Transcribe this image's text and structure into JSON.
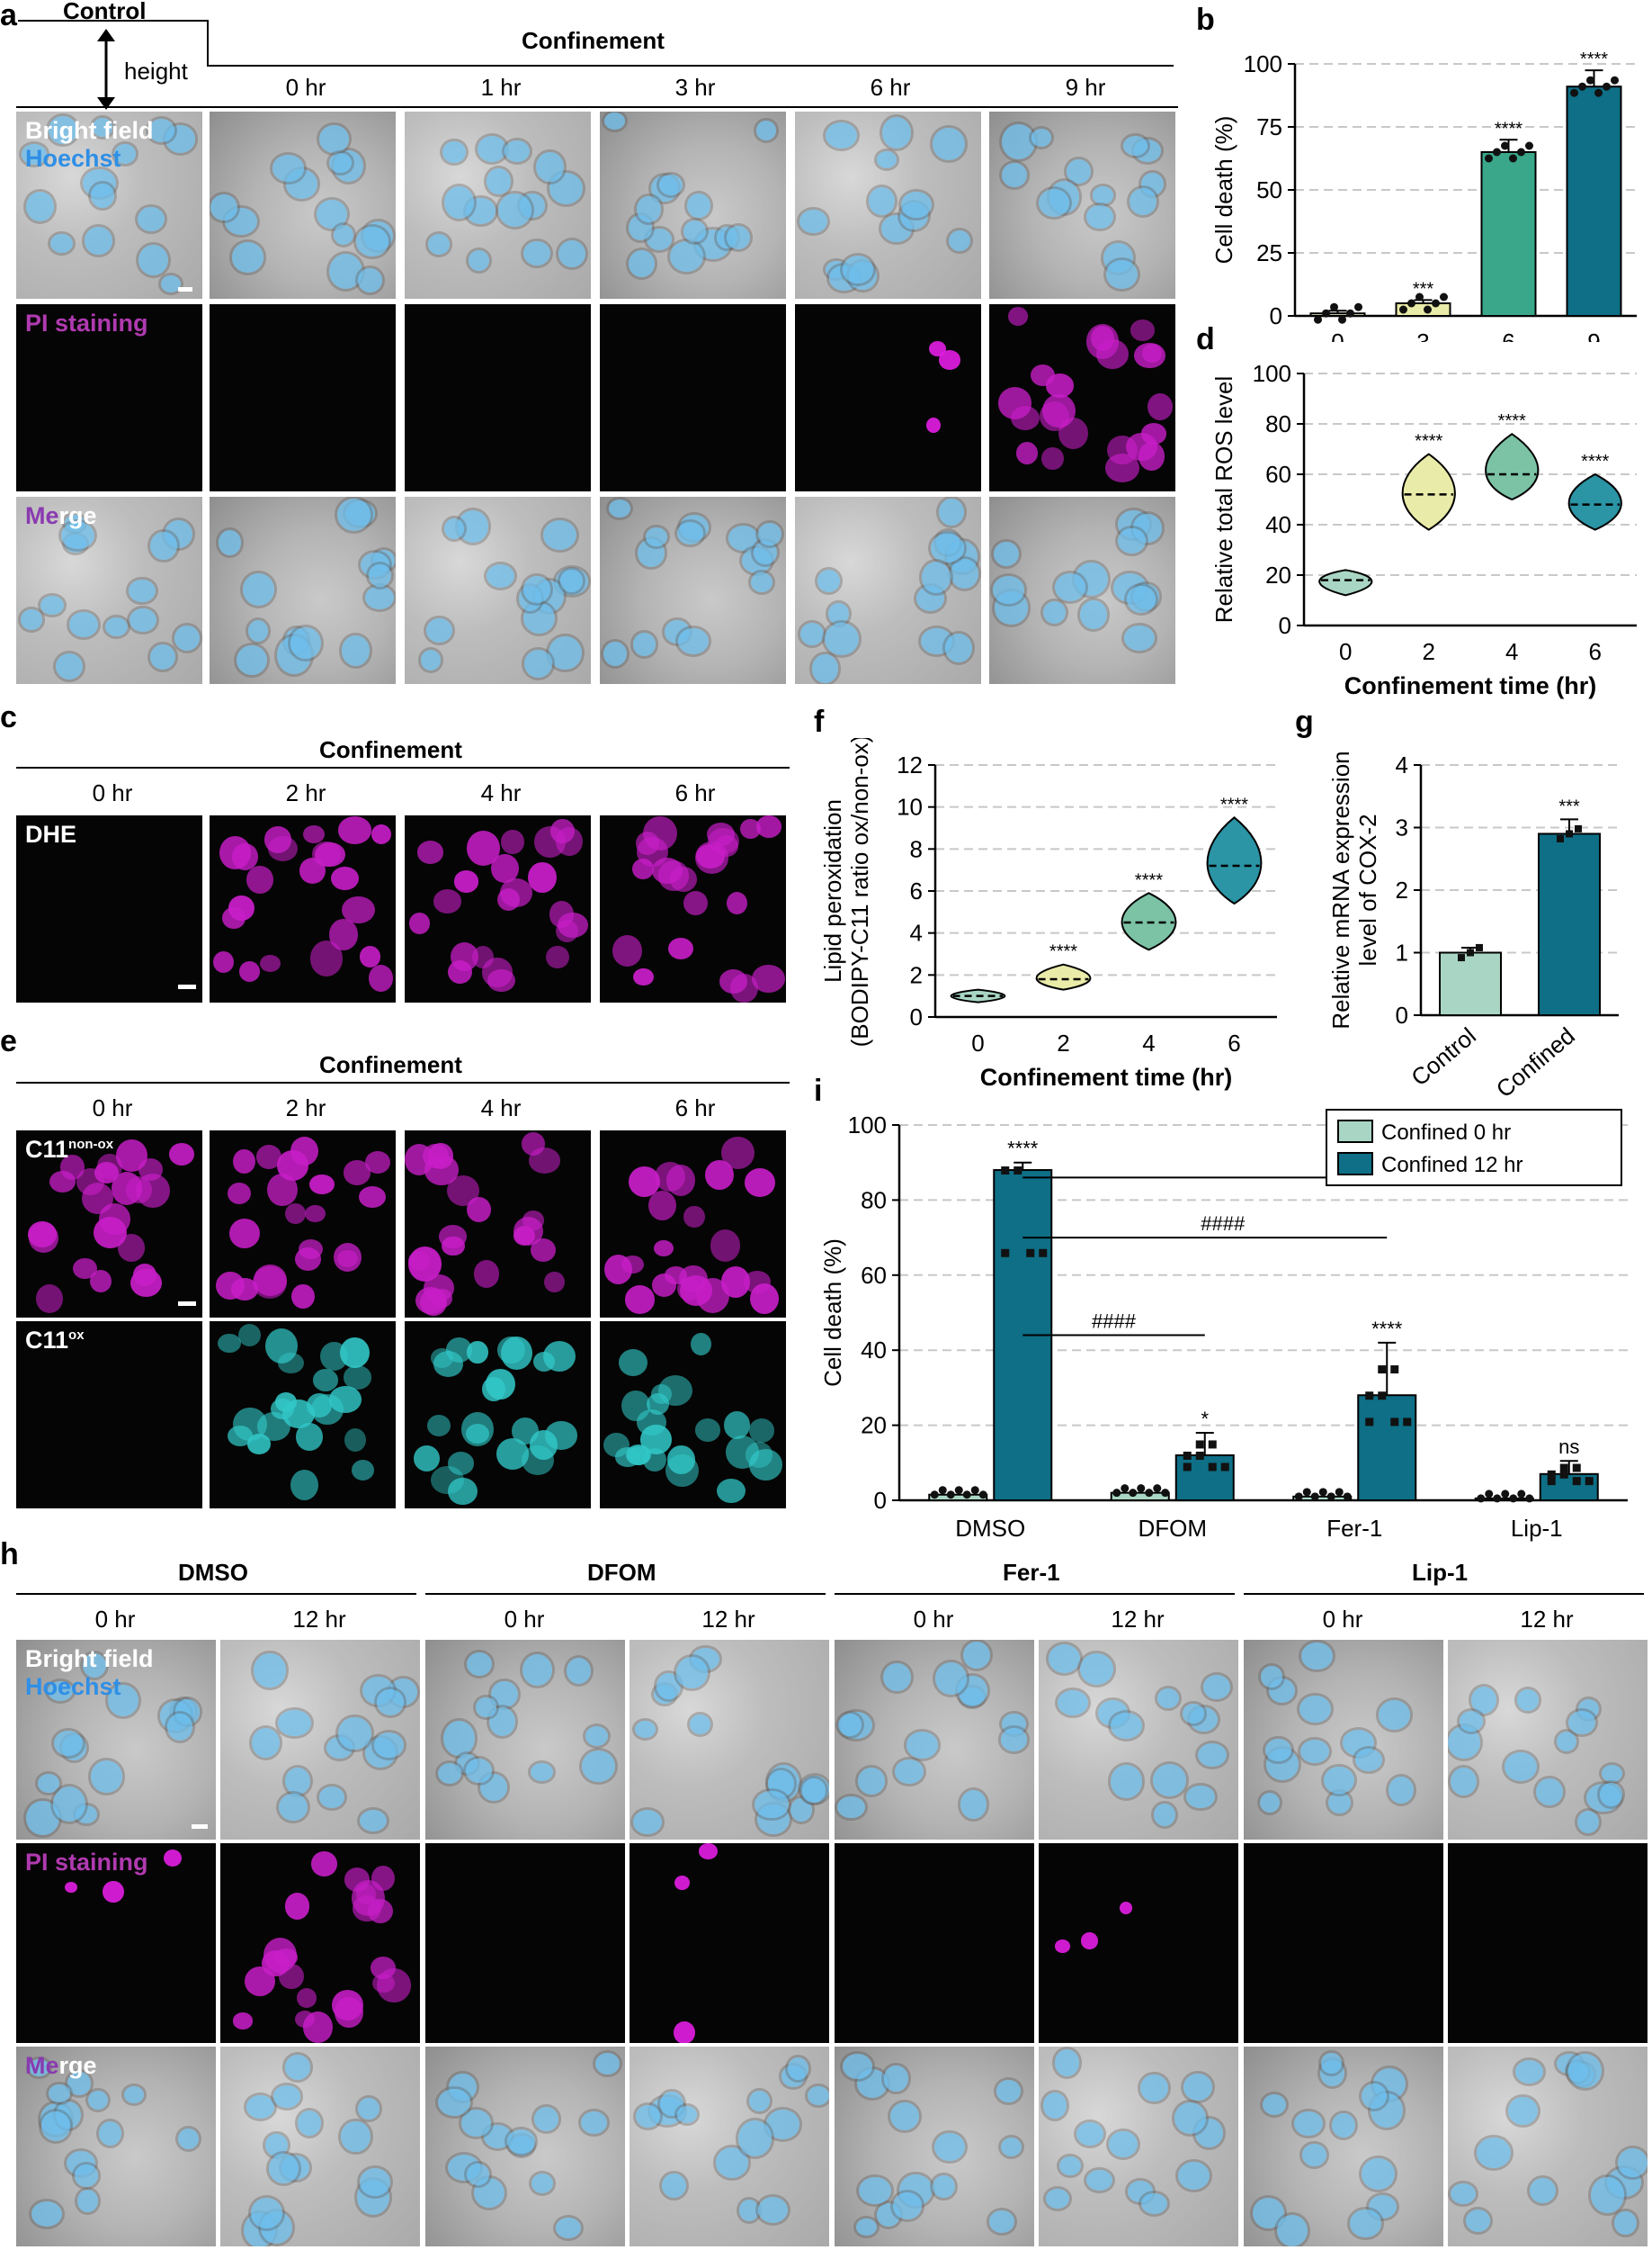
{
  "panel_labels": {
    "a": "a",
    "b": "b",
    "c": "c",
    "d": "d",
    "e": "e",
    "f": "f",
    "g": "g",
    "h": "h",
    "i": "i"
  },
  "panel_a": {
    "control": "Control",
    "height": "height",
    "confinement": "Confinement",
    "times": [
      "0 hr",
      "1 hr",
      "3 hr",
      "6 hr",
      "9 hr"
    ],
    "row_labels": {
      "bright_field": "Bright field",
      "hoechst": "Hoechst",
      "pi": "PI staining",
      "merge_a": "Me",
      "merge_b": "rge"
    }
  },
  "panel_c": {
    "confinement": "Confinement",
    "times": [
      "0 hr",
      "2 hr",
      "4 hr",
      "6 hr"
    ],
    "row_label": "DHE"
  },
  "panel_e": {
    "confinement": "Confinement",
    "times": [
      "0 hr",
      "2 hr",
      "4 hr",
      "6 hr"
    ],
    "row1": "C11",
    "row1_sup": "non-ox",
    "row2": "C11",
    "row2_sup": "ox"
  },
  "panel_h": {
    "groups": [
      "DMSO",
      "DFOM",
      "Fer-1",
      "Lip-1"
    ],
    "times": [
      "0 hr",
      "12 hr",
      "0 hr",
      "12 hr",
      "0 hr",
      "12 hr",
      "0 hr",
      "12 hr"
    ],
    "row_labels": {
      "bright_field": "Bright field",
      "hoechst": "Hoechst",
      "pi": "PI staining",
      "merge_a": "Me",
      "merge_b": "rge"
    }
  },
  "colors": {
    "mint": "#a9d6c4",
    "teal": "#0e6f86",
    "pale": "#e9eba8",
    "mid": "#3aa78b",
    "grid": "#c8c8c8",
    "magenta": "#d21ed2",
    "cyan": "#3fd4d4",
    "hoechst": "#3a8fe0"
  },
  "chart_data": [
    {
      "id": "b",
      "type": "bar",
      "categories": [
        "0",
        "3",
        "6",
        "9"
      ],
      "values": [
        1,
        5,
        65,
        91
      ],
      "ylabel": "Cell death (%)",
      "xlabel": "",
      "ylim": [
        0,
        100
      ],
      "yticks": [
        0,
        25,
        50,
        75,
        100
      ],
      "significance": [
        "",
        "***",
        "****",
        "****"
      ],
      "colors": [
        "#e6ecbe",
        "#e9eba8",
        "#3aa78b",
        "#0e6f86"
      ],
      "grid": true
    },
    {
      "id": "d",
      "type": "violin",
      "categories": [
        "0",
        "2",
        "4",
        "6"
      ],
      "medians": [
        18,
        52,
        60,
        48
      ],
      "ranges": [
        [
          12,
          22
        ],
        [
          38,
          68
        ],
        [
          50,
          76
        ],
        [
          38,
          60
        ]
      ],
      "ylabel": "Relative total ROS level",
      "xlabel": "Confinement time (hr)",
      "ylim": [
        0,
        100
      ],
      "yticks": [
        0,
        20,
        40,
        60,
        80,
        100
      ],
      "significance": [
        "",
        "****",
        "****",
        "****"
      ],
      "colors": [
        "#a9d6c4",
        "#e9eba8",
        "#7cc3a6",
        "#2b94a5"
      ],
      "grid": true
    },
    {
      "id": "f",
      "type": "violin",
      "categories": [
        "0",
        "2",
        "4",
        "6"
      ],
      "medians": [
        1.0,
        1.8,
        4.5,
        7.2
      ],
      "ranges": [
        [
          0.7,
          1.3
        ],
        [
          1.3,
          2.5
        ],
        [
          3.2,
          5.9
        ],
        [
          5.4,
          9.5
        ]
      ],
      "ylabel": "Lipid peroxidation (BODIPY-C11 ratio ox/non-ox)",
      "xlabel": "Confinement time (hr)",
      "ylim": [
        0,
        12
      ],
      "yticks": [
        0,
        2,
        4,
        6,
        8,
        10,
        12
      ],
      "significance": [
        "",
        "****",
        "****",
        "****"
      ],
      "colors": [
        "#a9d6c4",
        "#e9eba8",
        "#7cc3a6",
        "#2b94a5"
      ],
      "grid": true
    },
    {
      "id": "g",
      "type": "bar",
      "categories": [
        "Control",
        "Confined"
      ],
      "values": [
        1.0,
        2.9
      ],
      "ylabel": "Relative mRNA expression level of COX-2",
      "xlabel": "",
      "ylim": [
        0,
        4
      ],
      "yticks": [
        0,
        1,
        2,
        3,
        4
      ],
      "significance": [
        "",
        "***"
      ],
      "colors": [
        "#a9d6c4",
        "#0e6f86"
      ],
      "grid": true
    },
    {
      "id": "i",
      "type": "bar",
      "categories": [
        "DMSO",
        "DFOM",
        "Fer-1",
        "Lip-1"
      ],
      "series": [
        {
          "name": "Confined 0 hr",
          "values": [
            1.5,
            2.0,
            1.0,
            0.5
          ]
        },
        {
          "name": "Confined 12 hr",
          "values": [
            88,
            12,
            28,
            7
          ]
        }
      ],
      "ylabel": "Cell death (%)",
      "xlabel": "",
      "ylim": [
        0,
        100
      ],
      "yticks": [
        0,
        20,
        40,
        60,
        80,
        100
      ],
      "significance": [
        "****",
        "*",
        "****",
        "ns"
      ],
      "brackets": [
        "####",
        "####",
        "####"
      ],
      "legend_position": "top-right",
      "grid": true
    }
  ]
}
